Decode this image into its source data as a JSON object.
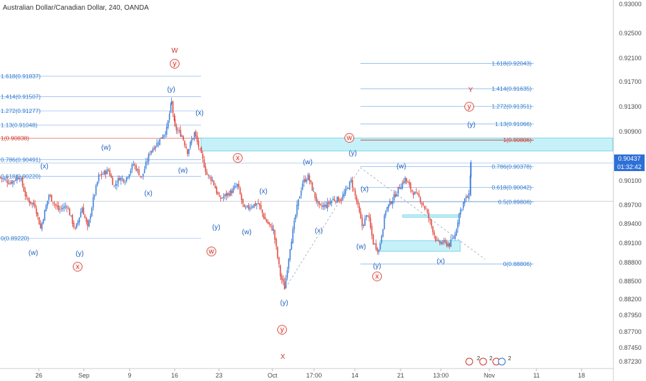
{
  "title": "Australian Dollar/Canadian Dollar, 240, OANDA",
  "price_axis": {
    "labels": [
      "0.93000",
      "0.92500",
      "0.92100",
      "0.91700",
      "0.91300",
      "0.90900",
      "0.90437",
      "0.90100",
      "0.89700",
      "0.89400",
      "0.89100",
      "0.88800",
      "0.88500",
      "0.88200",
      "0.87950",
      "0.87700",
      "0.87450",
      "0.87230"
    ],
    "current_price": "0.90437",
    "countdown": "01:32:42"
  },
  "time_axis": {
    "labels": [
      "26",
      "Sep",
      "9",
      "16",
      "23",
      "Oct",
      "17:00",
      "14",
      "21",
      "13:00",
      "Nov",
      "11",
      "18"
    ]
  },
  "colors": {
    "up": "#3a7cd8",
    "down": "#e0443a",
    "fib_line": "#8ab4e8",
    "fib_text": "#2e7bcf",
    "wave_blue": "#1f5fbf",
    "wave_red": "#d0342a",
    "zone": "#bdeff8"
  },
  "left_fib": [
    {
      "label": "1.618(0.91837)",
      "color": "#2e7bcf"
    },
    {
      "label": "1.414(0.91507)",
      "color": "#2e7bcf"
    },
    {
      "label": "1.272(0.91277)",
      "color": "#2e7bcf"
    },
    {
      "label": "1.13(0.91048)",
      "color": "#2e7bcf"
    },
    {
      "label": "1(0.90838)",
      "color": "#d0342a"
    },
    {
      "label": "0.786(0.90491)",
      "color": "#2e7bcf"
    },
    {
      "label": "0.618(0.90220)",
      "color": "#2e7bcf"
    },
    {
      "label": "0(0.89220)",
      "color": "#2e7bcf"
    }
  ],
  "right_fib": [
    {
      "label": "1.618(0.92043)",
      "color": "#2e7bcf"
    },
    {
      "label": "1.414(0.91635)",
      "color": "#2e7bcf"
    },
    {
      "label": "1.272(0.91351)",
      "color": "#2e7bcf"
    },
    {
      "label": "1.13(0.91066)",
      "color": "#2e7bcf"
    },
    {
      "label": "1(0.90806)",
      "color": "#d0342a"
    },
    {
      "label": "0.786(0.90378)",
      "color": "#2e7bcf"
    },
    {
      "label": "0.618(0.90042)",
      "color": "#2e7bcf"
    },
    {
      "label": "0.5(0.89806)",
      "color": "#2e7bcf"
    },
    {
      "label": "0(0.88806)",
      "color": "#2e7bcf"
    }
  ],
  "wave_labels": [
    {
      "text": "W",
      "style": "red-big"
    },
    {
      "text": "y",
      "style": "red-circle"
    },
    {
      "text": "(y)",
      "style": "blue"
    },
    {
      "text": "(x)",
      "style": "blue"
    },
    {
      "text": "(w)",
      "style": "blue"
    },
    {
      "text": "(w)",
      "style": "blue"
    },
    {
      "text": "(x)",
      "style": "blue"
    },
    {
      "text": "(x)",
      "style": "blue"
    },
    {
      "text": "(w)",
      "style": "blue"
    },
    {
      "text": "(y)",
      "style": "blue"
    },
    {
      "text": "x",
      "style": "red-circle"
    },
    {
      "text": "(y)",
      "style": "blue"
    },
    {
      "text": "x",
      "style": "red-circle"
    },
    {
      "text": "w",
      "style": "red-circle"
    },
    {
      "text": "(w)",
      "style": "blue"
    },
    {
      "text": "(x)",
      "style": "blue"
    },
    {
      "text": "(w)",
      "style": "blue"
    },
    {
      "text": "(y)",
      "style": "blue"
    },
    {
      "text": "y",
      "style": "red-circle"
    },
    {
      "text": "X",
      "style": "red-big"
    },
    {
      "text": "(x)",
      "style": "blue"
    },
    {
      "text": "(y)",
      "style": "blue"
    },
    {
      "text": "w",
      "style": "red-circle"
    },
    {
      "text": "(x)",
      "style": "blue"
    },
    {
      "text": "(w)",
      "style": "blue"
    },
    {
      "text": "(w)",
      "style": "blue"
    },
    {
      "text": "(y)",
      "style": "blue"
    },
    {
      "text": "x",
      "style": "red-circle"
    },
    {
      "text": "(x)",
      "style": "blue"
    },
    {
      "text": "Y",
      "style": "red-big"
    },
    {
      "text": "y",
      "style": "red-circle"
    },
    {
      "text": "(y)",
      "style": "blue"
    }
  ],
  "chart_data": {
    "type": "candlestick",
    "title": "Australian Dollar/Canadian Dollar, 240, OANDA",
    "ylim": [
      0.8715,
      0.9308
    ],
    "y_scale": "linear",
    "grid": false,
    "close_path": [
      [
        0,
        0.902
      ],
      [
        14,
        0.9012
      ],
      [
        28,
        0.9022
      ],
      [
        38,
        0.8985
      ],
      [
        50,
        0.8975
      ],
      [
        58,
        0.8938
      ],
      [
        70,
        0.8992
      ],
      [
        84,
        0.8968
      ],
      [
        96,
        0.8975
      ],
      [
        108,
        0.8935
      ],
      [
        118,
        0.8972
      ],
      [
        126,
        0.8938
      ],
      [
        134,
        0.8985
      ],
      [
        142,
        0.9022
      ],
      [
        156,
        0.9032
      ],
      [
        164,
        0.9006
      ],
      [
        172,
        0.902
      ],
      [
        180,
        0.9016
      ],
      [
        192,
        0.9042
      ],
      [
        204,
        0.902
      ],
      [
        216,
        0.9062
      ],
      [
        228,
        0.9078
      ],
      [
        240,
        0.9098
      ],
      [
        247,
        0.9142
      ],
      [
        252,
        0.91
      ],
      [
        262,
        0.9088
      ],
      [
        270,
        0.9062
      ],
      [
        280,
        0.9092
      ],
      [
        292,
        0.9048
      ],
      [
        298,
        0.9025
      ],
      [
        306,
        0.9016
      ],
      [
        316,
        0.8985
      ],
      [
        326,
        0.8992
      ],
      [
        334,
        0.8998
      ],
      [
        342,
        0.9008
      ],
      [
        352,
        0.8968
      ],
      [
        362,
        0.8975
      ],
      [
        372,
        0.8978
      ],
      [
        382,
        0.8952
      ],
      [
        394,
        0.8935
      ],
      [
        404,
        0.8862
      ],
      [
        410,
        0.8842
      ],
      [
        418,
        0.8908
      ],
      [
        428,
        0.8972
      ],
      [
        436,
        0.9012
      ],
      [
        444,
        0.9022
      ],
      [
        452,
        0.8995
      ],
      [
        460,
        0.8972
      ],
      [
        470,
        0.8975
      ],
      [
        480,
        0.8985
      ],
      [
        492,
        0.8985
      ],
      [
        506,
        0.9015
      ],
      [
        514,
        0.8982
      ],
      [
        522,
        0.8942
      ],
      [
        530,
        0.8962
      ],
      [
        538,
        0.8915
      ],
      [
        546,
        0.8902
      ],
      [
        556,
        0.8968
      ],
      [
        566,
        0.8985
      ],
      [
        576,
        0.9005
      ],
      [
        584,
        0.9018
      ],
      [
        594,
        0.8998
      ],
      [
        604,
        0.8988
      ],
      [
        614,
        0.8968
      ],
      [
        622,
        0.8942
      ],
      [
        630,
        0.8915
      ],
      [
        640,
        0.8915
      ],
      [
        648,
        0.8912
      ],
      [
        656,
        0.8928
      ],
      [
        662,
        0.8962
      ],
      [
        670,
        0.8985
      ],
      [
        676,
        0.899
      ],
      [
        679,
        0.90437
      ]
    ],
    "zigzag": [
      [
        0.8842
      ],
      [
        0.9036
      ],
      [
        0.8888
      ]
    ],
    "zones": [
      {
        "from": 0.9084,
        "to": 0.9063
      },
      {
        "from": 0.8918,
        "to": 0.8901
      },
      {
        "from": 0.896,
        "to": 0.8956
      }
    ],
    "horizontal_lines": [
      0.90437,
      0.8982
    ],
    "fib_sets": [
      {
        "levels": [
          0.91837,
          0.91507,
          0.91277,
          0.91048,
          0.90838,
          0.90491,
          0.9022,
          0.8922
        ]
      },
      {
        "levels": [
          0.92043,
          0.91635,
          0.91351,
          0.91066,
          0.90806,
          0.90378,
          0.90042,
          0.89806,
          0.88806
        ]
      }
    ]
  }
}
